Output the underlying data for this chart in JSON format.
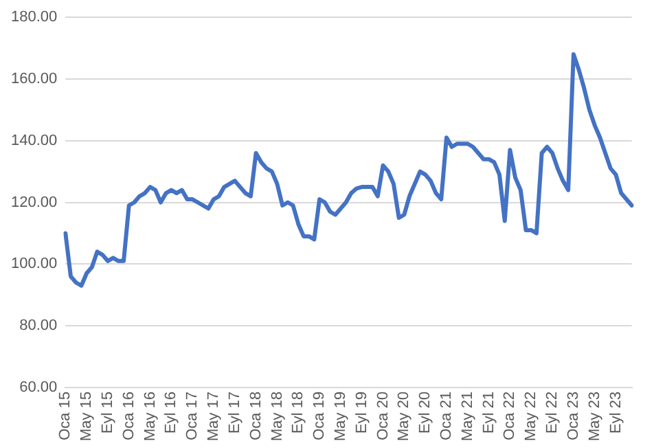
{
  "chart_data": {
    "type": "line",
    "categories": [
      "Oca 15",
      null,
      null,
      null,
      "May 15",
      null,
      null,
      null,
      "Eyl 15",
      null,
      null,
      null,
      "Oca 16",
      null,
      null,
      null,
      "May 16",
      null,
      null,
      null,
      "Eyl 16",
      null,
      null,
      null,
      "Oca 17",
      null,
      null,
      null,
      "May 17",
      null,
      null,
      null,
      "Eyl 17",
      null,
      null,
      null,
      "Oca 18",
      null,
      null,
      null,
      "May 18",
      null,
      null,
      null,
      "Eyl 18",
      null,
      null,
      null,
      "Oca 19",
      null,
      null,
      null,
      "May 19",
      null,
      null,
      null,
      "Eyl 19",
      null,
      null,
      null,
      "Oca 20",
      null,
      null,
      null,
      "May 20",
      null,
      null,
      null,
      "Eyl 20",
      null,
      null,
      null,
      "Oca 21",
      null,
      null,
      null,
      "May 21",
      null,
      null,
      null,
      "Eyl 21",
      null,
      null,
      null,
      "Oca 22",
      null,
      null,
      null,
      "May 22",
      null,
      null,
      null,
      "Eyl 22",
      null,
      null,
      null,
      "Oca 23",
      null,
      null,
      null,
      "May 23",
      null,
      null,
      null,
      "Eyl 23",
      null,
      null,
      null
    ],
    "series": [
      {
        "color": "#4472c4",
        "values": [
          110,
          96,
          94,
          93,
          97,
          99,
          104,
          103,
          101,
          102,
          101,
          101,
          119,
          120,
          122,
          123,
          125,
          124,
          120,
          123,
          124,
          123,
          124,
          121,
          121,
          120,
          119,
          118,
          121,
          122,
          125,
          126,
          127,
          125,
          123,
          122,
          136,
          133,
          131,
          130,
          126,
          119,
          120,
          119,
          113,
          109,
          109,
          108,
          121,
          120,
          117,
          116,
          118,
          120,
          123,
          124.5,
          125,
          125,
          125,
          122,
          132,
          130,
          126,
          115,
          116,
          122,
          126,
          130,
          129,
          127,
          123,
          121,
          141,
          138,
          139,
          139,
          139,
          138,
          136,
          134,
          134,
          133,
          129,
          114,
          137,
          128,
          124,
          111,
          111,
          110,
          136,
          138,
          136,
          131,
          127,
          124,
          168,
          163,
          157,
          150,
          145,
          141,
          136,
          131,
          129,
          123,
          121,
          119
        ]
      }
    ],
    "ylim": [
      60,
      180
    ],
    "yticks": [
      {
        "value": 60,
        "label": "60.00"
      },
      {
        "value": 80,
        "label": "80.00"
      },
      {
        "value": 100,
        "label": "100.00"
      },
      {
        "value": 120,
        "label": "120.00"
      },
      {
        "value": 140,
        "label": "140.00"
      },
      {
        "value": 160,
        "label": "160.00"
      },
      {
        "value": 180,
        "label": "180.00"
      }
    ],
    "grid": "y",
    "legend": false,
    "marker": "none",
    "line_style": "solid"
  }
}
